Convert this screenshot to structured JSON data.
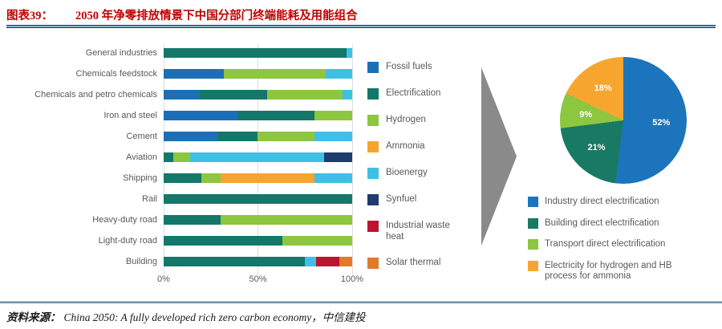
{
  "header": {
    "figure_label": "图表39：",
    "figure_title": "2050 年净零排放情景下中国分部门终端能耗及用能组合"
  },
  "footer": {
    "source_label": "资料来源：",
    "source_text": "China 2050: A fully developed rich zero carbon economy，中信建投"
  },
  "chart_data": [
    {
      "type": "bar",
      "orientation": "horizontal",
      "stacked": true,
      "unit": "%",
      "xlim": [
        0,
        100
      ],
      "x_ticks": [
        "0%",
        "50%",
        "100%"
      ],
      "grid": "vertical-light",
      "categories": [
        "General industries",
        "Chemicals feedstock",
        "Chemicals and petro chemicals",
        "Iron and steel",
        "Cement",
        "Aviation",
        "Shipping",
        "Rail",
        "Heavy-duty road",
        "Light-duty road",
        "Building"
      ],
      "segments": [
        [
          [
            "Electrification",
            97
          ],
          [
            "Bioenergy",
            3
          ]
        ],
        [
          [
            "Fossil fuels",
            32
          ],
          [
            "Hydrogen",
            54
          ],
          [
            "Bioenergy",
            14
          ]
        ],
        [
          [
            "Fossil fuels",
            19
          ],
          [
            "Electrification",
            36
          ],
          [
            "Hydrogen",
            40
          ],
          [
            "Bioenergy",
            5
          ]
        ],
        [
          [
            "Fossil fuels",
            39
          ],
          [
            "Electrification",
            41
          ],
          [
            "Hydrogen",
            20
          ]
        ],
        [
          [
            "Fossil fuels",
            29
          ],
          [
            "Electrification",
            21
          ],
          [
            "Hydrogen",
            30
          ],
          [
            "Bioenergy",
            20
          ]
        ],
        [
          [
            "Electrification",
            5
          ],
          [
            "Hydrogen",
            9
          ],
          [
            "Bioenergy",
            71
          ],
          [
            "Synfuel",
            15
          ]
        ],
        [
          [
            "Electrification",
            20
          ],
          [
            "Hydrogen",
            10
          ],
          [
            "Ammonia",
            50
          ],
          [
            "Bioenergy",
            20
          ]
        ],
        [
          [
            "Electrification",
            100
          ]
        ],
        [
          [
            "Electrification",
            30
          ],
          [
            "Hydrogen",
            70
          ]
        ],
        [
          [
            "Electrification",
            63
          ],
          [
            "Hydrogen",
            37
          ]
        ],
        [
          [
            "Electrification",
            75
          ],
          [
            "Bioenergy",
            6
          ],
          [
            "Industrial waste heat",
            12
          ],
          [
            "Solar thermal",
            7
          ]
        ]
      ],
      "legend": [
        "Fossil fuels",
        "Electrification",
        "Hydrogen",
        "Ammonia",
        "Bioenergy",
        "Synfuel",
        "Industrial waste heat",
        "Solar thermal"
      ],
      "colors": {
        "Fossil fuels": "#1c6fb7",
        "Electrification": "#137869",
        "Hydrogen": "#8dc63f",
        "Ammonia": "#f6a42d",
        "Bioenergy": "#3ec0e6",
        "Synfuel": "#1e3c6e",
        "Industrial waste heat": "#be1330",
        "Solar thermal": "#e2792b"
      }
    },
    {
      "type": "pie",
      "start_angle_deg": 0,
      "direction": "clockwise",
      "labels": [
        "Industry direct electrification",
        "Building direct electrification",
        "Transport direct electrification",
        "Electricity for hydrogen and HB process for ammonia"
      ],
      "values": [
        52,
        21,
        9,
        18
      ],
      "value_labels": [
        "52%",
        "21%",
        "9%",
        "18%"
      ],
      "colors": [
        "#1b74bc",
        "#187a64",
        "#8dc63f",
        "#f6a62f"
      ],
      "legend_position": "bottom"
    }
  ],
  "arrow": {
    "name": "flow-arrow",
    "color": "#8a8a8a"
  }
}
